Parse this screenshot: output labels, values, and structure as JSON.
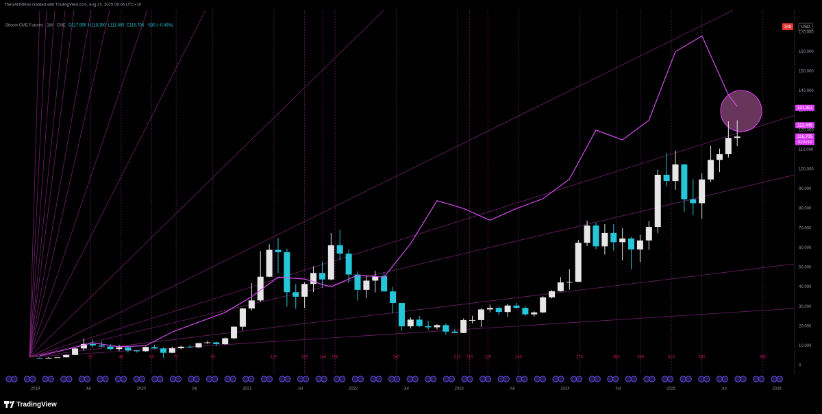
{
  "header": "TheGANNMan created with TradingView.com, Aug 23, 2025 06:06 UTC+10",
  "brand": "TradingView",
  "alert_badge": "349",
  "currency": "USD",
  "chart_data": {
    "type": "candlestick",
    "title": "Bitcoin CME Futures · 1W · CME",
    "legend_ohlc": [
      "O117,995",
      "H118,350",
      "L111,805",
      "C116,705",
      "−530 (−0.45%)"
    ],
    "dates": [
      "2019-01",
      "2019-02",
      "2019-03",
      "2019-04",
      "2019-05",
      "2019-06",
      "2019-07",
      "2019-08",
      "2019-09",
      "2019-10",
      "2019-11",
      "2019-12",
      "2020-01",
      "2020-02",
      "2020-03",
      "2020-04",
      "2020-05",
      "2020-06",
      "2020-07",
      "2020-08",
      "2020-09",
      "2020-10",
      "2020-11",
      "2020-12",
      "2021-01",
      "2021-02",
      "2021-03",
      "2021-04",
      "2021-05",
      "2021-06",
      "2021-07",
      "2021-08",
      "2021-09",
      "2021-10",
      "2021-11",
      "2021-12",
      "2022-01",
      "2022-02",
      "2022-03",
      "2022-04",
      "2022-05",
      "2022-06",
      "2022-07",
      "2022-08",
      "2022-09",
      "2022-10",
      "2022-11",
      "2022-12",
      "2023-01",
      "2023-02",
      "2023-03",
      "2023-04",
      "2023-05",
      "2023-06",
      "2023-07",
      "2023-08",
      "2023-09",
      "2023-10",
      "2023-11",
      "2023-12",
      "2024-01",
      "2024-02",
      "2024-03",
      "2024-04",
      "2024-05",
      "2024-06",
      "2024-07",
      "2024-08",
      "2024-09",
      "2024-10",
      "2024-11",
      "2024-12",
      "2025-01",
      "2025-02",
      "2025-03",
      "2025-04",
      "2025-05",
      "2025-06",
      "2025-07",
      "2025-08"
    ],
    "open": [
      3700,
      3450,
      3850,
      4100,
      5300,
      8600,
      10900,
      10100,
      9600,
      8300,
      9200,
      7600,
      7200,
      9350,
      8600,
      6400,
      8700,
      9500,
      9150,
      11350,
      11700,
      10800,
      13800,
      19700,
      29000,
      33100,
      45200,
      58900,
      57700,
      37300,
      35000,
      41500,
      47100,
      43800,
      61300,
      57000,
      46300,
      38500,
      43200,
      45500,
      37700,
      31800,
      19900,
      23300,
      20000,
      19400,
      20500,
      17200,
      16500,
      23100,
      23100,
      28500,
      29300,
      27200,
      30500,
      29300,
      26000,
      27000,
      34700,
      37800,
      42300,
      42600,
      62500,
      71300,
      60700,
      67500,
      62800,
      64700,
      59100,
      63700,
      70600,
      97200,
      94000,
      102500,
      84700,
      82700,
      94800,
      104800,
      107700,
      116000
    ],
    "high": [
      4100,
      4200,
      4150,
      5600,
      9000,
      13800,
      13200,
      12300,
      10900,
      10500,
      9500,
      7800,
      9600,
      10500,
      9200,
      9500,
      10000,
      10400,
      11400,
      12500,
      12100,
      14200,
      19900,
      29300,
      42000,
      58300,
      61800,
      65000,
      59500,
      41400,
      42300,
      50500,
      52900,
      67500,
      69000,
      59100,
      48000,
      45800,
      48200,
      47500,
      40000,
      31900,
      24500,
      25200,
      22800,
      21000,
      21400,
      18400,
      23900,
      25300,
      29200,
      31000,
      29900,
      31400,
      31800,
      30200,
      27500,
      35200,
      38400,
      45000,
      49000,
      64000,
      73800,
      72700,
      72000,
      72000,
      70000,
      65600,
      66500,
      73600,
      99800,
      108300,
      109500,
      102800,
      95000,
      97900,
      112000,
      110600,
      124400,
      125000
    ],
    "low": [
      3300,
      3400,
      3800,
      4050,
      5300,
      7500,
      9100,
      9300,
      7700,
      7300,
      6500,
      6500,
      6900,
      8500,
      3900,
      6200,
      8200,
      8900,
      8900,
      10900,
      9900,
      10400,
      13300,
      17800,
      28000,
      32300,
      44900,
      47000,
      30000,
      28800,
      29300,
      37300,
      39600,
      43300,
      53500,
      42000,
      33000,
      34300,
      37200,
      37600,
      26500,
      17600,
      18800,
      19600,
      18200,
      18300,
      15500,
      16300,
      16400,
      21400,
      19600,
      27000,
      25800,
      24800,
      28900,
      25200,
      24900,
      26600,
      34100,
      37600,
      38600,
      42500,
      60800,
      59200,
      56500,
      58500,
      53500,
      49000,
      52600,
      58900,
      67500,
      91300,
      89500,
      78300,
      76600,
      74800,
      93400,
      98500,
      106000,
      111800
    ],
    "close": [
      3450,
      3850,
      4100,
      5300,
      8600,
      10900,
      10100,
      9600,
      8300,
      9200,
      7600,
      7200,
      9350,
      8600,
      6400,
      8700,
      9500,
      9150,
      11350,
      11700,
      10800,
      13800,
      19700,
      29000,
      33100,
      45200,
      58900,
      57700,
      37300,
      35000,
      41500,
      47100,
      43800,
      61300,
      57000,
      46300,
      38500,
      43200,
      45500,
      37700,
      31800,
      19900,
      23300,
      20000,
      19400,
      20500,
      17200,
      16500,
      23100,
      23100,
      28500,
      29300,
      27200,
      30500,
      29300,
      26000,
      27000,
      34700,
      37800,
      42300,
      42600,
      62500,
      71300,
      60700,
      67500,
      62800,
      64700,
      59100,
      63700,
      70600,
      97200,
      94000,
      102500,
      84700,
      82700,
      94800,
      104800,
      107700,
      116000,
      116700
    ],
    "up_color": "#e6e6e6",
    "down_color": "#26c6da",
    "overlay": {
      "color": "#d84ef0",
      "dates": [
        "2019-01",
        "2019-04",
        "2019-07",
        "2019-10",
        "2020-01",
        "2020-04",
        "2020-07",
        "2020-10",
        "2021-01",
        "2021-04",
        "2021-07",
        "2021-10",
        "2022-01",
        "2022-04",
        "2022-07",
        "2022-10",
        "2023-01",
        "2023-04",
        "2023-07",
        "2023-10",
        "2024-01",
        "2024-04",
        "2024-07",
        "2024-10",
        "2025-01",
        "2025-04",
        "2025-07",
        "2025-08"
      ],
      "values": [
        5000,
        8000,
        11500,
        9500,
        10000,
        17000,
        22000,
        27000,
        35000,
        45000,
        44000,
        40000,
        46000,
        45000,
        62000,
        84000,
        80000,
        74000,
        80000,
        85000,
        95000,
        120000,
        115000,
        125000,
        160000,
        168000,
        138000,
        132000
      ]
    },
    "xlim": [
      "2018-09",
      "2026-03"
    ],
    "xticks": [
      {
        "value": "2019-01",
        "label": "2019"
      },
      {
        "value": "2019-07",
        "label": "Jul"
      },
      {
        "value": "2020-01",
        "label": "2020"
      },
      {
        "value": "2020-07",
        "label": "Jul"
      },
      {
        "value": "2021-01",
        "label": "2021"
      },
      {
        "value": "2021-07",
        "label": "Jul"
      },
      {
        "value": "2022-01",
        "label": "2022"
      },
      {
        "value": "2022-07",
        "label": "Jul"
      },
      {
        "value": "2023-01",
        "label": "2023"
      },
      {
        "value": "2023-07",
        "label": "Jul"
      },
      {
        "value": "2024-01",
        "label": "2024"
      },
      {
        "value": "2024-07",
        "label": "Jul"
      },
      {
        "value": "2025-01",
        "label": "2025"
      },
      {
        "value": "2025-07",
        "label": "Jul"
      },
      {
        "value": "2026-01",
        "label": "2026"
      }
    ],
    "ylim": [
      -4200,
      181100
    ],
    "yticks": [
      0,
      {
        "value": 10000,
        "label": "10,000"
      },
      {
        "value": 20000,
        "label": "20,000"
      },
      {
        "value": 30000,
        "label": "30,000"
      },
      {
        "value": 40000,
        "label": "40,000"
      },
      {
        "value": 50000,
        "label": "50,000"
      },
      {
        "value": 60000,
        "label": "60,000"
      },
      {
        "value": 70000,
        "label": "70,000"
      },
      {
        "value": 80000,
        "label": "80,000"
      },
      {
        "value": 90000,
        "label": "90,000"
      },
      {
        "value": 100000,
        "label": "100,000"
      },
      {
        "value": 110000,
        "label": "110,000"
      },
      {
        "value": 120000,
        "label": "120,000"
      },
      {
        "value": 130000,
        "label": "130,000"
      },
      {
        "value": 140000,
        "label": "140,000"
      },
      {
        "value": 150000,
        "label": "150,000"
      },
      {
        "value": 160000,
        "label": "160,000"
      },
      {
        "value": 170000,
        "label": "170,000"
      }
    ],
    "cycles": [
      30,
      45,
      60,
      72,
      90,
      120,
      135,
      144,
      150,
      180,
      210,
      216,
      225,
      240,
      270,
      288,
      300,
      315,
      330,
      360
    ],
    "cycle_color": "#c2185b",
    "price_labels": [
      {
        "value": 131351,
        "label": "131,351",
        "color": "#e040fb"
      },
      {
        "value": 122445,
        "label": "122,445",
        "color": "#e040fb"
      },
      {
        "value": 116705,
        "label": "116,705",
        "color": "#e040fb"
      }
    ],
    "countdown": "01:03:10"
  }
}
